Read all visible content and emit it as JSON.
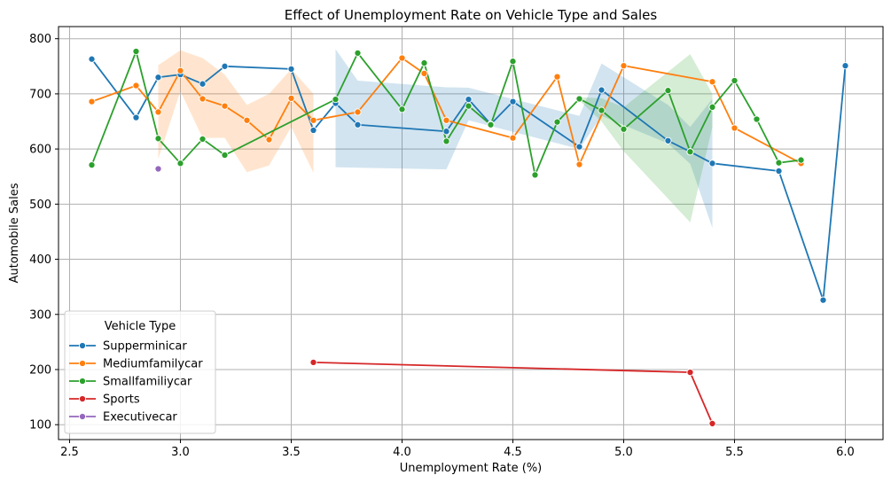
{
  "chart_data": {
    "type": "line",
    "title": "Effect of Unemployment Rate on Vehicle Type and Sales",
    "xlabel": "Unemployment Rate (%)",
    "ylabel": "Automobile Sales",
    "xlim": [
      2.45,
      6.17
    ],
    "ylim": [
      73,
      822
    ],
    "xticks": [
      "2.5",
      "3.0",
      "3.5",
      "4.0",
      "4.5",
      "5.0",
      "5.5",
      "6.0"
    ],
    "yticks": [
      "100",
      "200",
      "300",
      "400",
      "500",
      "600",
      "700",
      "800"
    ],
    "grid": true,
    "legend": {
      "title": "Vehicle Type",
      "placement": "lower-left"
    },
    "series": [
      {
        "name": "Supperminicar",
        "color": "#1f77b4",
        "points": [
          [
            2.6,
            763
          ],
          [
            2.8,
            657
          ],
          [
            2.9,
            730
          ],
          [
            3.0,
            735
          ],
          [
            3.1,
            718
          ],
          [
            3.2,
            750
          ],
          [
            3.5,
            745
          ],
          [
            3.6,
            634
          ],
          [
            3.7,
            683
          ],
          [
            3.8,
            644
          ],
          [
            4.2,
            632
          ],
          [
            4.3,
            690
          ],
          [
            4.4,
            645
          ],
          [
            4.5,
            686
          ],
          [
            4.8,
            604
          ],
          [
            4.9,
            707
          ],
          [
            5.2,
            615
          ],
          [
            5.3,
            595
          ],
          [
            5.4,
            574
          ],
          [
            5.7,
            560
          ],
          [
            5.9,
            326
          ],
          [
            6.0,
            751
          ]
        ],
        "band": [
          [
            3.7,
            567,
            781
          ],
          [
            3.8,
            566,
            724
          ],
          [
            4.2,
            563,
            712
          ],
          [
            4.3,
            652,
            711
          ],
          [
            4.8,
            600,
            660
          ],
          [
            4.9,
            660,
            755
          ],
          [
            5.2,
            610,
            680
          ],
          [
            5.3,
            573,
            640
          ],
          [
            5.4,
            457,
            691
          ]
        ]
      },
      {
        "name": "Mediumfamilycar",
        "color": "#ff7f0e",
        "points": [
          [
            2.6,
            686
          ],
          [
            2.8,
            715
          ],
          [
            2.9,
            667
          ],
          [
            3.0,
            742
          ],
          [
            3.1,
            691
          ],
          [
            3.2,
            678
          ],
          [
            3.3,
            652
          ],
          [
            3.4,
            617
          ],
          [
            3.5,
            692
          ],
          [
            3.6,
            652
          ],
          [
            3.8,
            667
          ],
          [
            4.0,
            765
          ],
          [
            4.1,
            737
          ],
          [
            4.2,
            652
          ],
          [
            4.5,
            620
          ],
          [
            4.7,
            731
          ],
          [
            4.8,
            572
          ],
          [
            5.0,
            751
          ],
          [
            5.4,
            722
          ],
          [
            5.5,
            638
          ],
          [
            5.8,
            574
          ]
        ],
        "band": [
          [
            2.9,
            752,
            582
          ],
          [
            3.0,
            779,
            705
          ],
          [
            3.1,
            765,
            620
          ],
          [
            3.2,
            735,
            620
          ],
          [
            3.3,
            680,
            558
          ],
          [
            3.4,
            700,
            570
          ],
          [
            3.5,
            745,
            640
          ],
          [
            3.6,
            700,
            557
          ]
        ]
      },
      {
        "name": "Smallfamiliycar",
        "color": "#2ca02c",
        "points": [
          [
            2.6,
            571
          ],
          [
            2.8,
            777
          ],
          [
            2.9,
            619
          ],
          [
            3.0,
            574
          ],
          [
            3.1,
            618
          ],
          [
            3.2,
            589
          ],
          [
            3.7,
            690
          ],
          [
            3.8,
            774
          ],
          [
            4.0,
            672
          ],
          [
            4.1,
            756
          ],
          [
            4.2,
            614
          ],
          [
            4.3,
            678
          ],
          [
            4.4,
            644
          ],
          [
            4.5,
            759
          ],
          [
            4.6,
            553
          ],
          [
            4.7,
            649
          ],
          [
            4.8,
            691
          ],
          [
            4.9,
            670
          ],
          [
            5.0,
            636
          ],
          [
            5.2,
            706
          ],
          [
            5.3,
            595
          ],
          [
            5.4,
            676
          ],
          [
            5.5,
            724
          ],
          [
            5.6,
            654
          ],
          [
            5.7,
            575
          ],
          [
            5.8,
            580
          ]
        ],
        "band": [
          [
            4.8,
            688,
            694
          ],
          [
            4.9,
            650,
            692
          ],
          [
            5.0,
            596,
            676
          ],
          [
            5.3,
            467,
            772
          ],
          [
            5.4,
            640,
            700
          ]
        ]
      },
      {
        "name": "Sports",
        "color": "#d62728",
        "points": [
          [
            3.6,
            213
          ],
          [
            5.3,
            195
          ],
          [
            5.4,
            102
          ]
        ]
      },
      {
        "name": "Executivecar",
        "color": "#9467bd",
        "points": [
          [
            2.9,
            564
          ]
        ]
      }
    ]
  }
}
